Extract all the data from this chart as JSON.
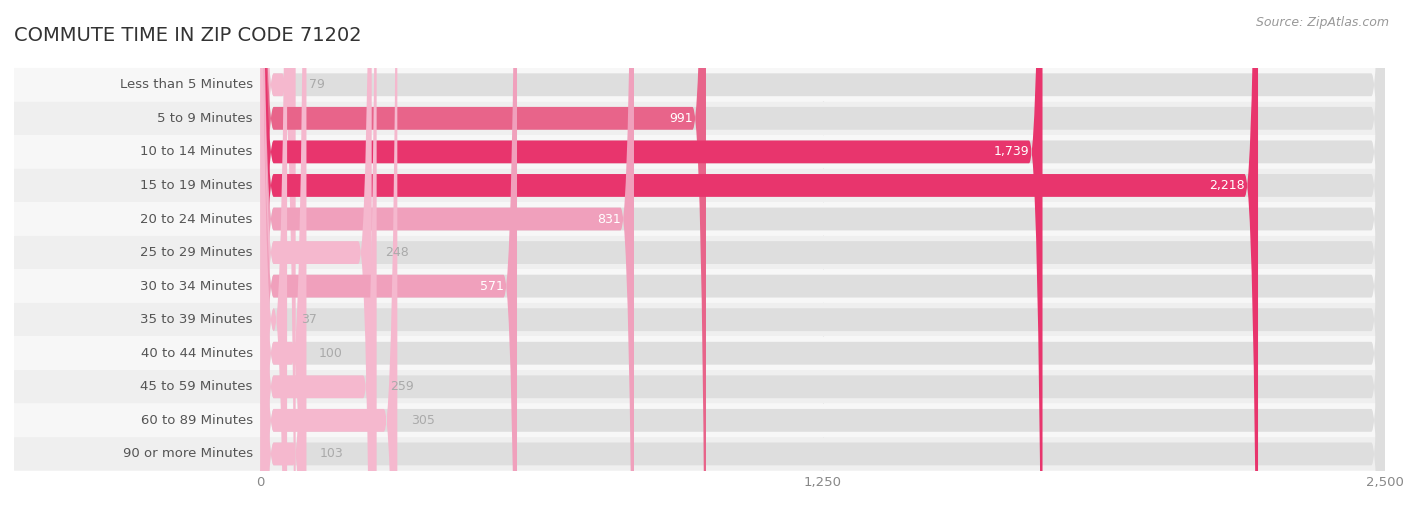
{
  "title": "COMMUTE TIME IN ZIP CODE 71202",
  "source": "Source: ZipAtlas.com",
  "categories": [
    "Less than 5 Minutes",
    "5 to 9 Minutes",
    "10 to 14 Minutes",
    "15 to 19 Minutes",
    "20 to 24 Minutes",
    "25 to 29 Minutes",
    "30 to 34 Minutes",
    "35 to 39 Minutes",
    "40 to 44 Minutes",
    "45 to 59 Minutes",
    "60 to 89 Minutes",
    "90 or more Minutes"
  ],
  "values": [
    79,
    991,
    1739,
    2218,
    831,
    248,
    571,
    37,
    100,
    259,
    305,
    103
  ],
  "xlim": [
    0,
    2500
  ],
  "xticks": [
    0,
    1250,
    2500
  ],
  "xtick_labels": [
    "0",
    "1,250",
    "2,500"
  ],
  "bar_color_high": "#e8356d",
  "bar_color_mid": "#e8648a",
  "bar_color_low": "#f0a0bc",
  "bar_color_vlow": "#f5b8ce",
  "row_bg_light": "#f7f7f7",
  "row_bg_dark": "#efefef",
  "title_color": "#333333",
  "label_color": "#555555",
  "value_color_inside": "#ffffff",
  "value_color_outside": "#aaaaaa",
  "source_color": "#999999",
  "title_fontsize": 14,
  "label_fontsize": 9.5,
  "value_fontsize": 9,
  "source_fontsize": 9,
  "fig_width": 14.06,
  "fig_height": 5.23
}
